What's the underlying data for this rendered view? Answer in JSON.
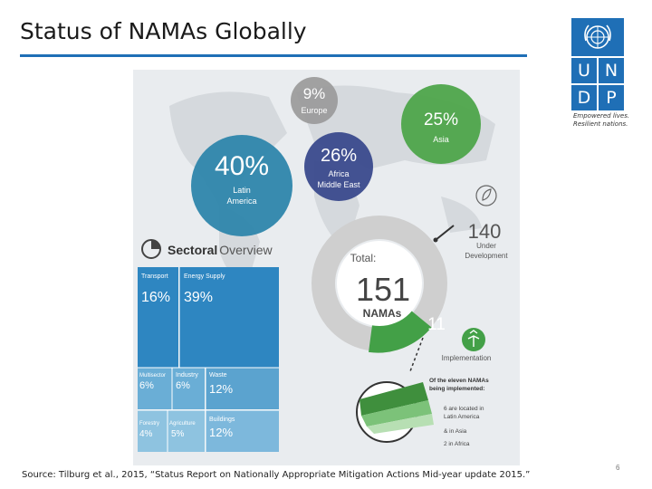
{
  "slide": {
    "title": "Status of NAMAs Globally",
    "source": "Source: Tilburg et al., 2015, “Status Report on Nationally Appropriate Mitigation Actions Mid-year update 2015.”",
    "page_number": "6"
  },
  "logo": {
    "letters": [
      "U",
      "N",
      "D",
      "P"
    ],
    "tagline_line1": "Empowered lives.",
    "tagline_line2": "Resilient nations."
  },
  "infographic": {
    "regions": [
      {
        "pct": "9%",
        "label1": "Europe",
        "label2": "",
        "color": "#9a9a9a"
      },
      {
        "pct": "25%",
        "label1": "Asia",
        "label2": "",
        "color": "#4ea54a"
      },
      {
        "pct": "40%",
        "label1": "Latin",
        "label2": "America",
        "color": "#2e86ab"
      },
      {
        "pct": "26%",
        "label1": "Africa",
        "label2": "Middle East",
        "color": "#3a4a8c"
      }
    ],
    "sectoral": {
      "title_bold": "Sectoral",
      "title_light": "Overview",
      "tiles": [
        {
          "name": "Transport",
          "pct": "16%"
        },
        {
          "name": "Energy Supply",
          "pct": "39%"
        },
        {
          "name": "Multisector",
          "pct": "6%"
        },
        {
          "name": "Industry",
          "pct": "6%"
        },
        {
          "name": "Waste",
          "pct": "12%"
        },
        {
          "name": "Forestry",
          "pct": "4%"
        },
        {
          "name": "Agriculture",
          "pct": "5%"
        },
        {
          "name": "Buildings",
          "pct": "12%"
        }
      ]
    },
    "total": {
      "label": "Total:",
      "number": "151",
      "unit": "NAMAs"
    },
    "under_development": {
      "number": "140",
      "label1": "Under",
      "label2": "Development"
    },
    "implementation": {
      "number": "11",
      "label": "Implementation"
    },
    "eleven_note": {
      "heading1": "Of the eleven NAMAs",
      "heading2": "being implemented:",
      "line1": "6 are located in",
      "line2": "Latin America",
      "line3": "& in Asia",
      "line4": "2 in Africa"
    }
  }
}
